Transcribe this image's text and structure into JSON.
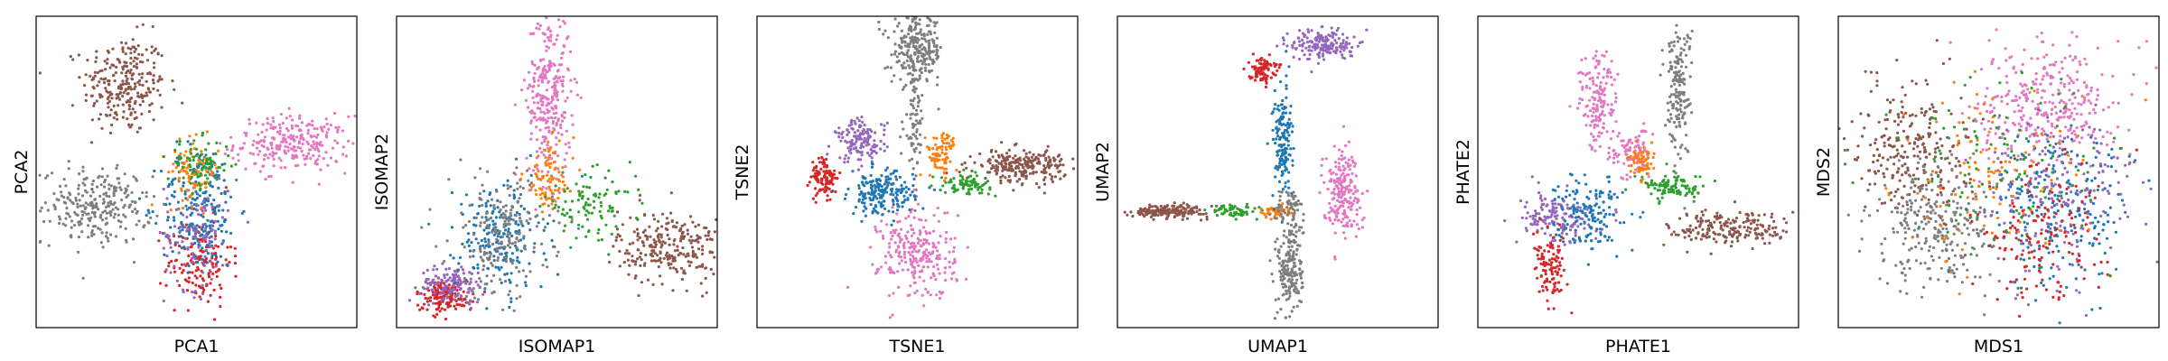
{
  "chart_data": [
    {
      "type": "scatter",
      "xlabel": "PCA1",
      "ylabel": "PCA2",
      "ticks": "none",
      "clusters": [
        {
          "color": "#8c564b",
          "cx": -0.45,
          "cy": 0.56,
          "sx": 0.13,
          "sy": 0.16,
          "n": 260
        },
        {
          "color": "#e377c2",
          "cx": 0.6,
          "cy": 0.18,
          "sx": 0.18,
          "sy": 0.09,
          "n": 260
        },
        {
          "color": "#7f7f7f",
          "cx": -0.62,
          "cy": -0.22,
          "sx": 0.17,
          "sy": 0.12,
          "n": 260
        },
        {
          "color": "#d62728",
          "cx": 0.02,
          "cy": -0.58,
          "sx": 0.1,
          "sy": 0.14,
          "n": 150
        },
        {
          "color": "#1f77b4",
          "cx": 0.02,
          "cy": -0.22,
          "sx": 0.12,
          "sy": 0.2,
          "n": 220
        },
        {
          "color": "#9467bd",
          "cx": 0.0,
          "cy": -0.4,
          "sx": 0.1,
          "sy": 0.18,
          "n": 110
        },
        {
          "color": "#ff7f0e",
          "cx": -0.02,
          "cy": 0.0,
          "sx": 0.08,
          "sy": 0.1,
          "n": 80
        },
        {
          "color": "#2ca02c",
          "cx": 0.02,
          "cy": 0.05,
          "sx": 0.1,
          "sy": 0.08,
          "n": 80
        }
      ]
    },
    {
      "type": "scatter",
      "xlabel": "ISOMAP1",
      "ylabel": "ISOMAP2",
      "ticks": "none",
      "clusters": [
        {
          "color": "#e377c2",
          "cx": -0.05,
          "cy": 0.5,
          "sx": 0.07,
          "sy": 0.28,
          "n": 300
        },
        {
          "color": "#8c564b",
          "cx": 0.7,
          "cy": -0.48,
          "sx": 0.16,
          "sy": 0.12,
          "n": 260
        },
        {
          "color": "#d62728",
          "cx": -0.7,
          "cy": -0.8,
          "sx": 0.09,
          "sy": 0.05,
          "n": 150
        },
        {
          "color": "#9467bd",
          "cx": -0.65,
          "cy": -0.72,
          "sx": 0.1,
          "sy": 0.06,
          "n": 130
        },
        {
          "color": "#1f77b4",
          "cx": -0.35,
          "cy": -0.42,
          "sx": 0.14,
          "sy": 0.18,
          "n": 200
        },
        {
          "color": "#7f7f7f",
          "cx": -0.35,
          "cy": -0.4,
          "sx": 0.16,
          "sy": 0.2,
          "n": 200
        },
        {
          "color": "#ff7f0e",
          "cx": -0.05,
          "cy": -0.05,
          "sx": 0.08,
          "sy": 0.12,
          "n": 90
        },
        {
          "color": "#2ca02c",
          "cx": 0.2,
          "cy": -0.22,
          "sx": 0.14,
          "sy": 0.1,
          "n": 100
        }
      ]
    },
    {
      "type": "scatter",
      "xlabel": "TSNE1",
      "ylabel": "TSNE2",
      "ticks": "none",
      "clusters": [
        {
          "color": "#7f7f7f",
          "cx": 0.0,
          "cy": 0.78,
          "sx": 0.08,
          "sy": 0.11,
          "n": 260
        },
        {
          "color": "#7f7f7f",
          "cx": -0.02,
          "cy": 0.3,
          "sx": 0.03,
          "sy": 0.16,
          "n": 70
        },
        {
          "color": "#8c564b",
          "cx": 0.65,
          "cy": 0.04,
          "sx": 0.14,
          "sy": 0.05,
          "n": 240
        },
        {
          "color": "#e377c2",
          "cx": 0.0,
          "cy": -0.52,
          "sx": 0.12,
          "sy": 0.15,
          "n": 260
        },
        {
          "color": "#9467bd",
          "cx": -0.35,
          "cy": 0.2,
          "sx": 0.08,
          "sy": 0.07,
          "n": 140
        },
        {
          "color": "#1f77b4",
          "cx": -0.22,
          "cy": -0.14,
          "sx": 0.1,
          "sy": 0.07,
          "n": 200
        },
        {
          "color": "#d62728",
          "cx": -0.58,
          "cy": -0.04,
          "sx": 0.04,
          "sy": 0.07,
          "n": 110
        },
        {
          "color": "#ff7f0e",
          "cx": 0.15,
          "cy": 0.12,
          "sx": 0.05,
          "sy": 0.07,
          "n": 80
        },
        {
          "color": "#2ca02c",
          "cx": 0.3,
          "cy": -0.08,
          "sx": 0.08,
          "sy": 0.03,
          "n": 80
        }
      ]
    },
    {
      "type": "scatter",
      "xlabel": "UMAP1",
      "ylabel": "UMAP2",
      "ticks": "none",
      "clusters": [
        {
          "color": "#8c564b",
          "cx": -0.67,
          "cy": -0.25,
          "sx": 0.12,
          "sy": 0.02,
          "n": 180
        },
        {
          "color": "#2ca02c",
          "cx": -0.27,
          "cy": -0.25,
          "sx": 0.07,
          "sy": 0.02,
          "n": 60
        },
        {
          "color": "#ff7f0e",
          "cx": -0.02,
          "cy": -0.25,
          "sx": 0.05,
          "sy": 0.02,
          "n": 60
        },
        {
          "color": "#1f77b4",
          "cx": 0.03,
          "cy": 0.18,
          "sx": 0.03,
          "sy": 0.18,
          "n": 160
        },
        {
          "color": "#7f7f7f",
          "cx": 0.08,
          "cy": -0.62,
          "sx": 0.04,
          "sy": 0.16,
          "n": 190
        },
        {
          "color": "#7f7f7f",
          "cx": 0.08,
          "cy": -0.25,
          "sx": 0.04,
          "sy": 0.08,
          "n": 60
        },
        {
          "color": "#9467bd",
          "cx": 0.28,
          "cy": 0.82,
          "sx": 0.1,
          "sy": 0.05,
          "n": 180
        },
        {
          "color": "#d62728",
          "cx": -0.1,
          "cy": 0.66,
          "sx": 0.04,
          "sy": 0.04,
          "n": 90
        },
        {
          "color": "#e377c2",
          "cx": 0.4,
          "cy": -0.12,
          "sx": 0.06,
          "sy": 0.14,
          "n": 200
        }
      ]
    },
    {
      "type": "scatter",
      "xlabel": "PHATE1",
      "ylabel": "PHATE2",
      "ticks": "none",
      "clusters": [
        {
          "color": "#7f7f7f",
          "cx": 0.25,
          "cy": 0.52,
          "sx": 0.04,
          "sy": 0.22,
          "n": 170
        },
        {
          "color": "#e377c2",
          "cx": -0.25,
          "cy": 0.45,
          "sx": 0.06,
          "sy": 0.16,
          "n": 150
        },
        {
          "color": "#e377c2",
          "cx": -0.05,
          "cy": 0.12,
          "sx": 0.06,
          "sy": 0.08,
          "n": 90
        },
        {
          "color": "#8c564b",
          "cx": 0.6,
          "cy": -0.36,
          "sx": 0.2,
          "sy": 0.06,
          "n": 200
        },
        {
          "color": "#2ca02c",
          "cx": 0.22,
          "cy": -0.1,
          "sx": 0.1,
          "sy": 0.04,
          "n": 100
        },
        {
          "color": "#9467bd",
          "cx": -0.52,
          "cy": -0.3,
          "sx": 0.12,
          "sy": 0.08,
          "n": 150
        },
        {
          "color": "#1f77b4",
          "cx": -0.3,
          "cy": -0.25,
          "sx": 0.1,
          "sy": 0.12,
          "n": 150
        },
        {
          "color": "#d62728",
          "cx": -0.55,
          "cy": -0.62,
          "sx": 0.05,
          "sy": 0.1,
          "n": 110
        },
        {
          "color": "#ff7f0e",
          "cx": 0.02,
          "cy": 0.05,
          "sx": 0.04,
          "sy": 0.05,
          "n": 60
        }
      ]
    },
    {
      "type": "scatter",
      "xlabel": "MDS1",
      "ylabel": "MDS2",
      "ticks": "none",
      "clusters": [
        {
          "color": "#e377c2",
          "cx": 0.3,
          "cy": 0.45,
          "sx": 0.22,
          "sy": 0.2,
          "n": 320
        },
        {
          "color": "#8c564b",
          "cx": -0.55,
          "cy": 0.15,
          "sx": 0.18,
          "sy": 0.22,
          "n": 260
        },
        {
          "color": "#7f7f7f",
          "cx": -0.35,
          "cy": -0.35,
          "sx": 0.22,
          "sy": 0.2,
          "n": 280
        },
        {
          "color": "#1f77b4",
          "cx": 0.4,
          "cy": -0.25,
          "sx": 0.22,
          "sy": 0.25,
          "n": 230
        },
        {
          "color": "#9467bd",
          "cx": 0.35,
          "cy": -0.1,
          "sx": 0.25,
          "sy": 0.28,
          "n": 200
        },
        {
          "color": "#d62728",
          "cx": 0.25,
          "cy": -0.4,
          "sx": 0.22,
          "sy": 0.22,
          "n": 150
        },
        {
          "color": "#ff7f0e",
          "cx": -0.05,
          "cy": -0.05,
          "sx": 0.3,
          "sy": 0.3,
          "n": 110
        },
        {
          "color": "#2ca02c",
          "cx": 0.0,
          "cy": 0.0,
          "sx": 0.35,
          "sy": 0.3,
          "n": 110
        }
      ]
    }
  ]
}
